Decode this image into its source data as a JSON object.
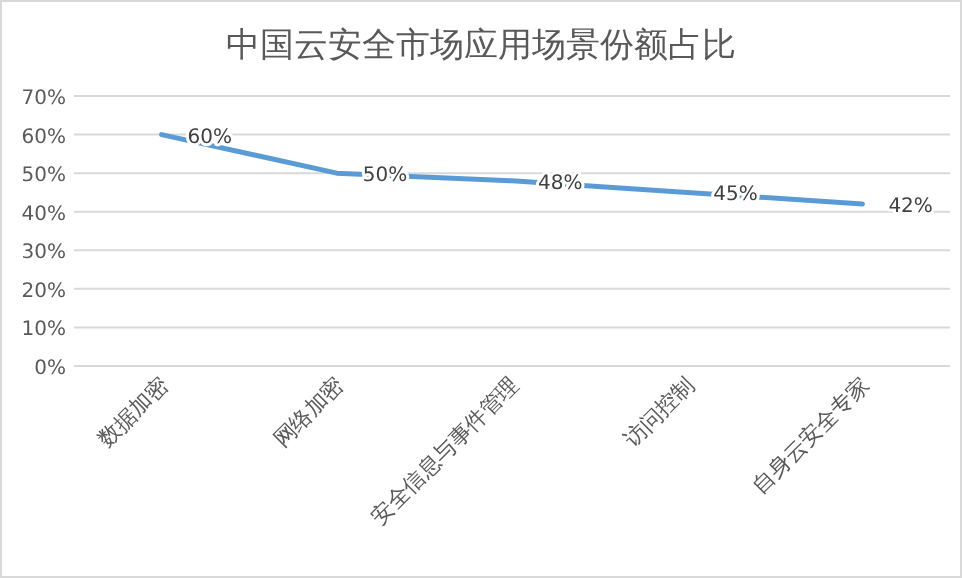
{
  "chart_data": {
    "type": "line",
    "title": "中国云安全市场应用场景份额占比",
    "categories": [
      "数据加密",
      "网络加密",
      "安全信息与事件管理",
      "访问控制",
      "自身云安全专家"
    ],
    "series": [
      {
        "color": "#5b9bd5",
        "values": [
          60,
          50,
          48,
          45,
          42
        ]
      }
    ],
    "value_labels": [
      "60%",
      "50%",
      "48%",
      "45%",
      "42%"
    ],
    "ylim": [
      0,
      70
    ],
    "yticks": [
      {
        "value": 0,
        "label": "0%"
      },
      {
        "value": 10,
        "label": "10%"
      },
      {
        "value": 20,
        "label": "20%"
      },
      {
        "value": 30,
        "label": "30%"
      },
      {
        "value": 40,
        "label": "40%"
      },
      {
        "value": 50,
        "label": "50%"
      },
      {
        "value": 60,
        "label": "60%"
      },
      {
        "value": 70,
        "label": "70%"
      }
    ],
    "grid": "y",
    "marker": "none",
    "line_style": "solid"
  }
}
